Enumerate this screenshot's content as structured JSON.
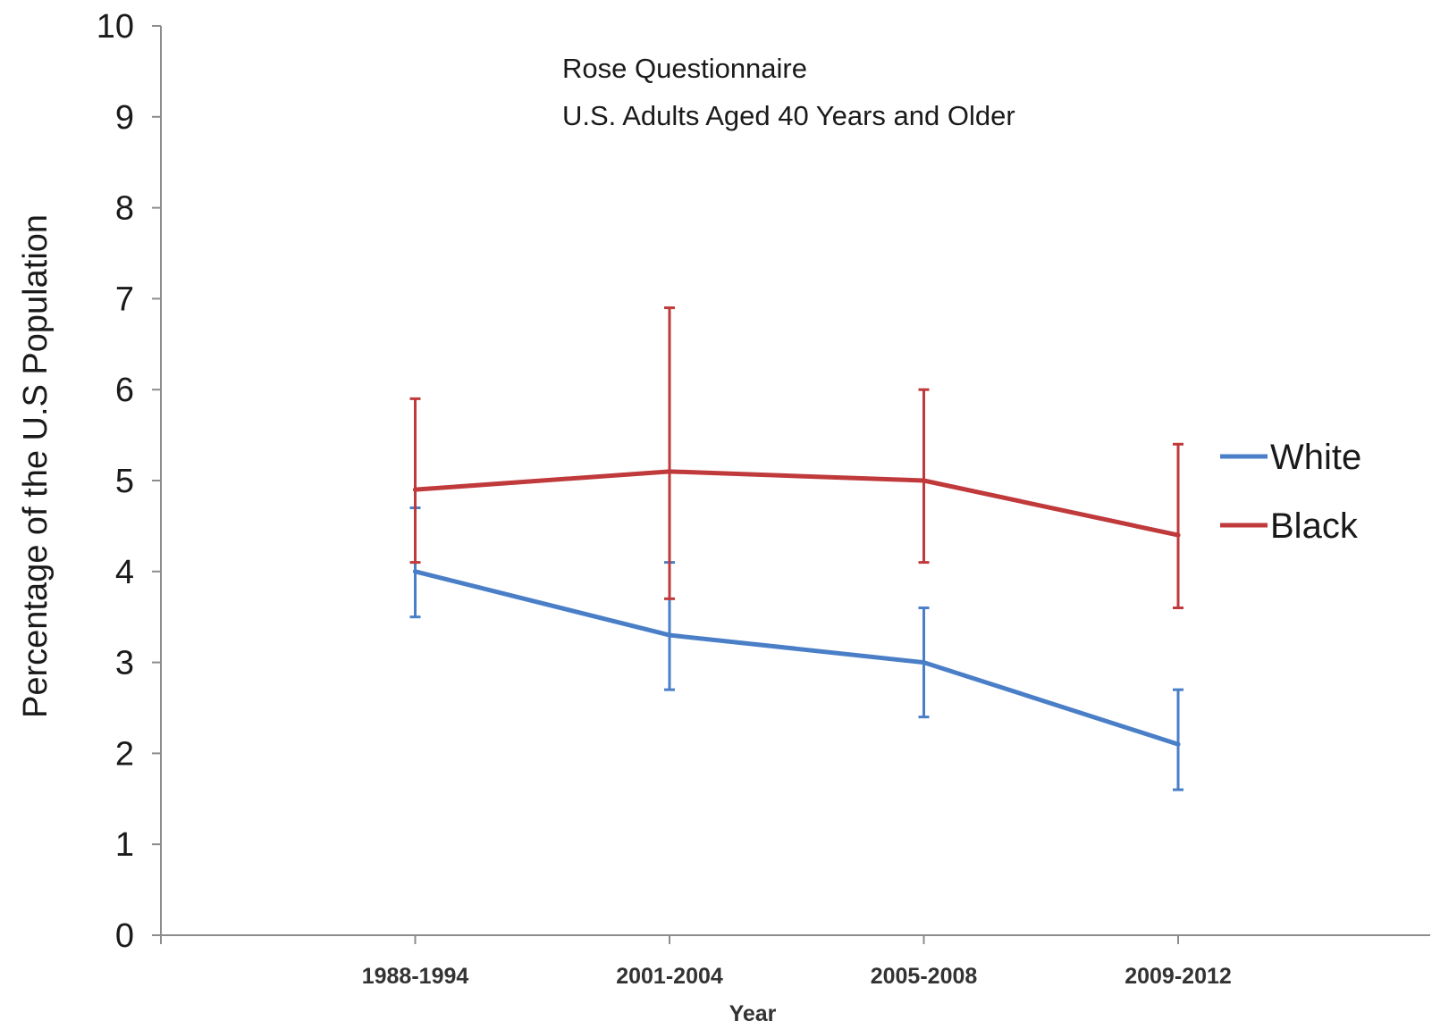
{
  "chart_data": {
    "type": "line",
    "title": "Rose Questionnaire",
    "subtitle": "U.S. Adults Aged 40 Years and Older",
    "xlabel": "Year",
    "ylabel": "Percentage of the U.S Population",
    "categories": [
      "1988-1994",
      "2001-2004",
      "2005-2008",
      "2009-2012"
    ],
    "ylim": [
      0,
      10
    ],
    "yticks": [
      0,
      1,
      2,
      3,
      4,
      5,
      6,
      7,
      8,
      9,
      10
    ],
    "grid": false,
    "legend_position": "right",
    "series": [
      {
        "name": "White",
        "color": "#4a7fc8",
        "values": [
          4.0,
          3.3,
          3.0,
          2.1
        ],
        "error_low": [
          3.5,
          2.7,
          2.4,
          1.6
        ],
        "error_high": [
          4.7,
          4.1,
          3.6,
          2.7
        ]
      },
      {
        "name": "Black",
        "color": "#c0393b",
        "values": [
          4.9,
          5.1,
          5.0,
          4.4
        ],
        "error_low": [
          4.1,
          3.7,
          4.1,
          3.6
        ],
        "error_high": [
          5.9,
          6.9,
          6.0,
          5.4
        ]
      }
    ]
  }
}
